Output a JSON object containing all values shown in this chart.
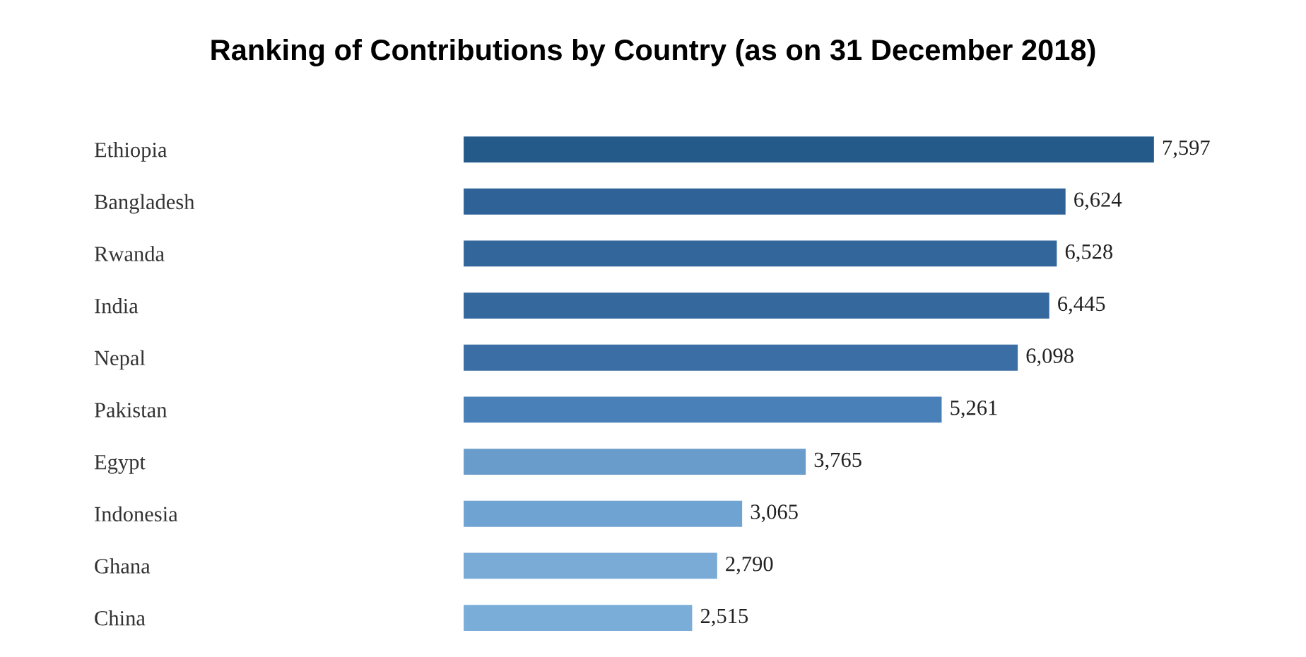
{
  "chart_data": {
    "type": "bar",
    "orientation": "horizontal",
    "title": "Ranking of Contributions by Country (as on 31 December 2018)",
    "categories": [
      "Ethiopia",
      "Bangladesh",
      "Rwanda",
      "India",
      "Nepal",
      "Pakistan",
      "Egypt",
      "Indonesia",
      "Ghana",
      "China"
    ],
    "values": [
      7597,
      6624,
      6528,
      6445,
      6098,
      5261,
      3765,
      3065,
      2790,
      2515
    ],
    "value_labels": [
      "7,597",
      "6,624",
      "6,528",
      "6,445",
      "6,098",
      "5,261",
      "3,765",
      "3,065",
      "2,790",
      "2,515"
    ],
    "colors": [
      "#245a8a",
      "#2f6398",
      "#33679c",
      "#35699e",
      "#3a6ea4",
      "#4a80b8",
      "#6a9ccb",
      "#6fa3d2",
      "#79abd6",
      "#7aaed9"
    ]
  }
}
